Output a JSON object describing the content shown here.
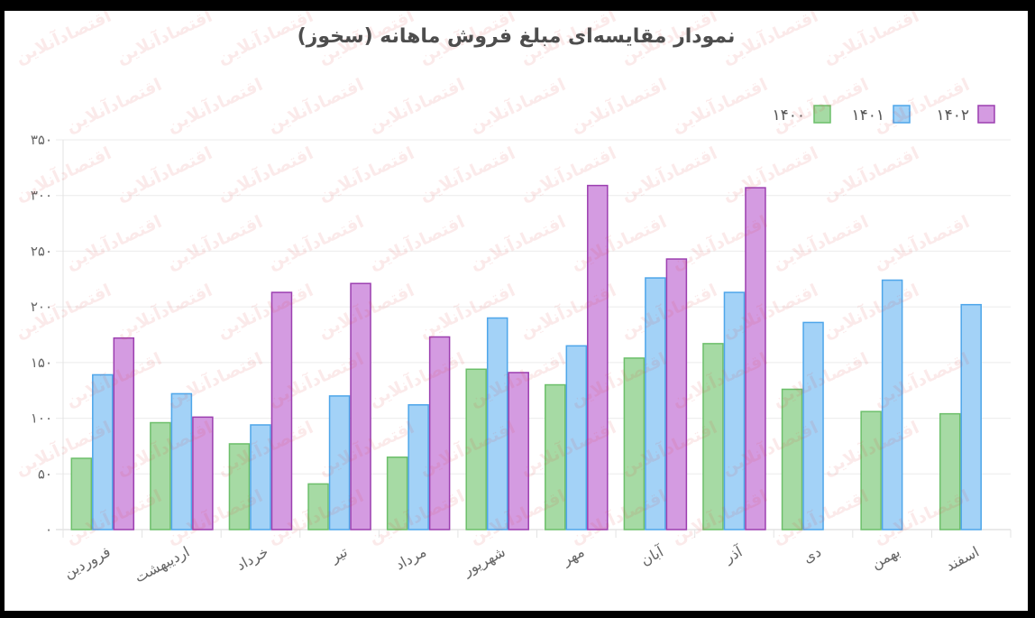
{
  "watermark": {
    "text": "اقتصادآنلاین"
  },
  "chart_data": {
    "type": "bar",
    "title": "نمودار مقایسه‌ای مبلغ فروش ماهانه (سخوز)",
    "categories": [
      "فروردین",
      "اردیبهشت",
      "خرداد",
      "تیر",
      "مرداد",
      "شهریور",
      "مهر",
      "آبان",
      "آذر",
      "دی",
      "بهمن",
      "اسفند"
    ],
    "series": [
      {
        "name": "۱۴۰۰",
        "color": "#a6daa4",
        "border_color": "#6cbf6a",
        "values": [
          64,
          96,
          77,
          41,
          65,
          144,
          130,
          154,
          167,
          126,
          106,
          104
        ]
      },
      {
        "name": "۱۴۰۱",
        "color": "#a3d2f7",
        "border_color": "#4ea6ea",
        "values": [
          139,
          122,
          94,
          120,
          112,
          190,
          165,
          226,
          213,
          186,
          224,
          202
        ]
      },
      {
        "name": "۱۴۰۲",
        "color": "#d49be1",
        "border_color": "#9c3fb0",
        "values": [
          172,
          101,
          213,
          221,
          173,
          141,
          309,
          243,
          307,
          null,
          null,
          null
        ]
      }
    ],
    "ylim": [
      0,
      350
    ],
    "y_ticks": [
      0,
      50,
      100,
      150,
      200,
      250,
      300,
      350
    ],
    "y_tick_labels": [
      "۰",
      "۵۰",
      "۱۰۰",
      "۱۵۰",
      "۲۰۰",
      "۲۵۰",
      "۳۰۰",
      "۳۵۰"
    ],
    "grid": true,
    "legend_position": "top-right"
  }
}
